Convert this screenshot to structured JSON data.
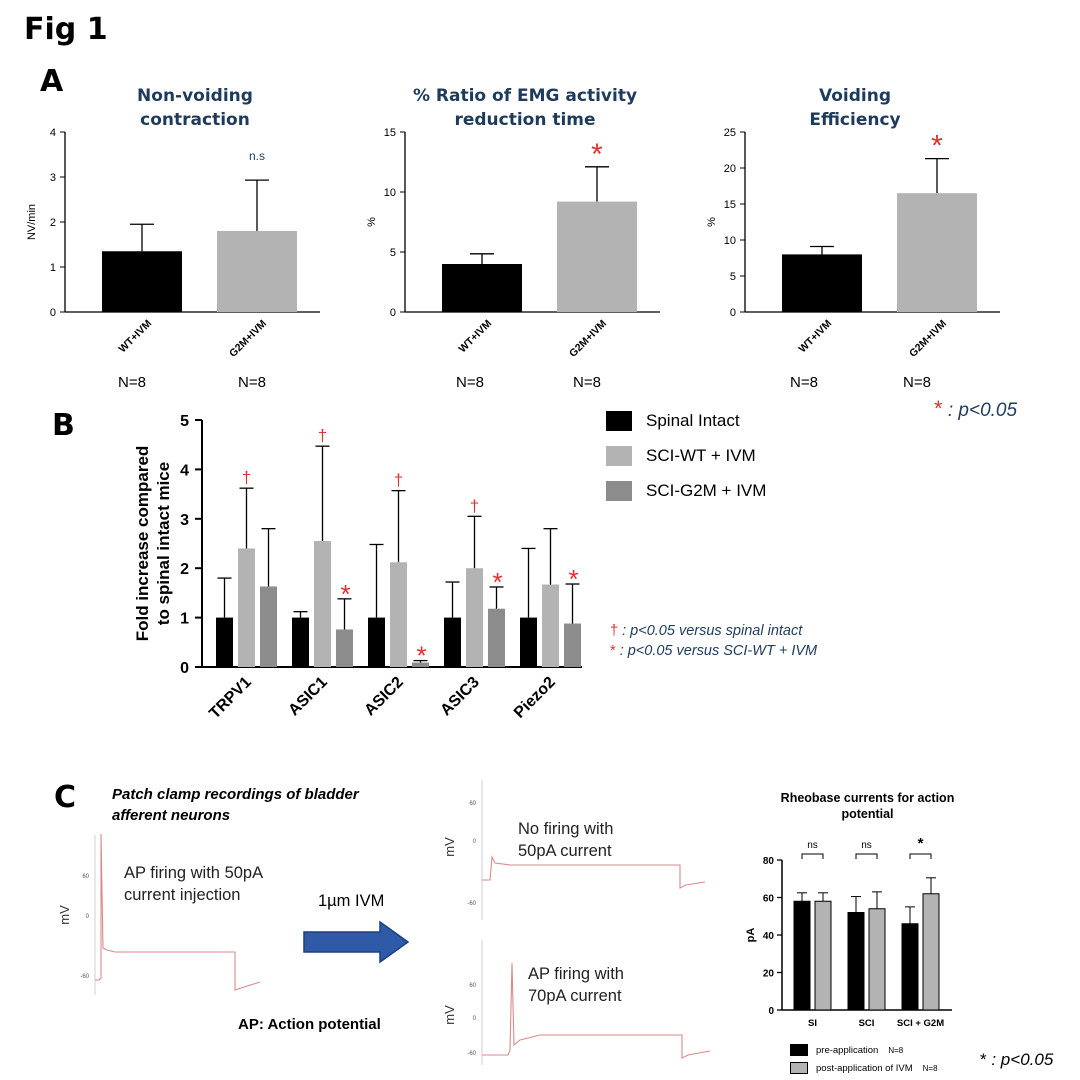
{
  "figure": {
    "title": "Fig 1",
    "panel_labels": [
      "A",
      "B",
      "C"
    ]
  },
  "colors": {
    "black_bar": "#000000",
    "gray_bar": "#b3b3b3",
    "dark_gray_bar": "#8c8c8c",
    "red_mark": "#e03030",
    "title_navy": "#1f3b5c",
    "arrow_blue": "#2f5aa8"
  },
  "panel_a": {
    "footnote_symbol": "*",
    "footnote_text": ": p<0.05",
    "charts": [
      {
        "title_lines": [
          "Non-voiding",
          "contraction"
        ],
        "ylabel": "NV/min",
        "n_labels": [
          "N=8",
          "N=8"
        ],
        "annotation": "n.s"
      },
      {
        "title_lines": [
          "% Ratio of EMG activity",
          "reduction time"
        ],
        "ylabel": "%",
        "n_labels": [
          "N=8",
          "N=8"
        ],
        "annotation": "*"
      },
      {
        "title_lines": [
          "Voiding",
          "Efficiency"
        ],
        "ylabel": "%",
        "n_labels": [
          "N=8",
          "N=8"
        ],
        "annotation": "*"
      }
    ]
  },
  "panel_b": {
    "legend": [
      "Spinal Intact",
      "SCI-WT + IVM",
      "SCI-G2M + IVM"
    ],
    "notes": [
      {
        "symbol": "†",
        "text": ": p<0.05 versus spinal intact"
      },
      {
        "symbol": "*",
        "text": ": p<0.05 versus SCI-WT + IVM"
      }
    ]
  },
  "panel_c": {
    "caption_lines": [
      "Patch clamp recordings of bladder",
      "afferent neurons"
    ],
    "trace1_lines": [
      "AP firing with 50pA",
      "current injection"
    ],
    "arrow_label": "1µm IVM",
    "trace2_lines": [
      "No firing with",
      "50pA current"
    ],
    "trace3_lines": [
      "AP firing with",
      "70pA current"
    ],
    "ap_note": "AP: Action potential",
    "trace_ylabel": "mV",
    "trace_ticks": [
      "60",
      "0",
      "-60"
    ],
    "footnote_symbol": "*",
    "footnote_text": ": p<0.05"
  },
  "chart_data": [
    {
      "type": "bar",
      "title": "Non-voiding contraction",
      "categories": [
        "WT+IVM",
        "G2M+IVM"
      ],
      "values": [
        1.35,
        1.8
      ],
      "errors": [
        0.6,
        1.13
      ],
      "ylabel": "NV/min",
      "ylim": [
        0,
        4
      ],
      "yticks": [
        0,
        1,
        2,
        3,
        4
      ],
      "colors": [
        "#000000",
        "#b3b3b3"
      ]
    },
    {
      "type": "bar",
      "title": "% Ratio of EMG activity reduction time",
      "categories": [
        "WT+IVM",
        "G2M+IVM"
      ],
      "values": [
        4.0,
        9.2
      ],
      "errors": [
        0.85,
        2.9
      ],
      "ylabel": "%",
      "ylim": [
        0,
        15
      ],
      "yticks": [
        0,
        5,
        10,
        15
      ],
      "colors": [
        "#000000",
        "#b3b3b3"
      ]
    },
    {
      "type": "bar",
      "title": "Voiding Efficiency",
      "categories": [
        "WT+IVM",
        "G2M+IVM"
      ],
      "values": [
        8.0,
        16.5
      ],
      "errors": [
        1.1,
        4.8
      ],
      "ylabel": "%",
      "ylim": [
        0,
        25
      ],
      "yticks": [
        0,
        5,
        10,
        15,
        20,
        25
      ],
      "colors": [
        "#000000",
        "#b3b3b3"
      ]
    },
    {
      "type": "bar",
      "categories": [
        "TRPV1",
        "ASIC1",
        "ASIC2",
        "ASIC3",
        "Piezo2"
      ],
      "ylabel": "Fold increase compared to spinal intact mice",
      "ylim": [
        0,
        5
      ],
      "yticks": [
        0,
        1,
        2,
        3,
        4,
        5
      ],
      "series": [
        {
          "name": "Spinal Intact",
          "values": [
            1.0,
            1.0,
            1.0,
            1.0,
            1.0
          ],
          "errors": [
            0.8,
            0.12,
            1.48,
            0.72,
            1.4
          ],
          "color": "#000000"
        },
        {
          "name": "SCI-WT + IVM",
          "values": [
            2.4,
            2.55,
            2.12,
            2.0,
            1.67
          ],
          "errors": [
            1.22,
            1.92,
            1.45,
            1.05,
            1.13
          ],
          "color": "#b3b3b3"
        },
        {
          "name": "SCI-G2M + IVM",
          "values": [
            1.63,
            0.76,
            0.09,
            1.18,
            0.88
          ],
          "errors": [
            1.17,
            0.62,
            0.04,
            0.44,
            0.8
          ],
          "color": "#8c8c8c"
        }
      ],
      "markers": {
        "dagger_on_series": "SCI-WT + IVM",
        "dagger_categories": [
          "TRPV1",
          "ASIC1",
          "ASIC2",
          "ASIC3"
        ],
        "star_on_series": "SCI-G2M + IVM",
        "star_categories": [
          "ASIC1",
          "ASIC2",
          "ASIC3",
          "Piezo2"
        ]
      }
    },
    {
      "type": "bar",
      "title": "Rheobase currents for action potential",
      "categories": [
        "SI",
        "SCI",
        "SCI + G2M"
      ],
      "ylabel": "pA",
      "ylim": [
        0,
        80
      ],
      "yticks": [
        0,
        20,
        40,
        60,
        80
      ],
      "series": [
        {
          "name": "pre-application",
          "legend_n": "N=8",
          "values": [
            58,
            52,
            46
          ],
          "errors": [
            4.5,
            8.5,
            9.0
          ],
          "color": "#000000"
        },
        {
          "name": "post-application of IVM",
          "legend_n": "N=8",
          "values": [
            58,
            54,
            62
          ],
          "errors": [
            4.5,
            9.0,
            8.5
          ],
          "color": "#b3b3b3"
        }
      ],
      "significance": [
        "ns",
        "ns",
        "*"
      ]
    }
  ]
}
